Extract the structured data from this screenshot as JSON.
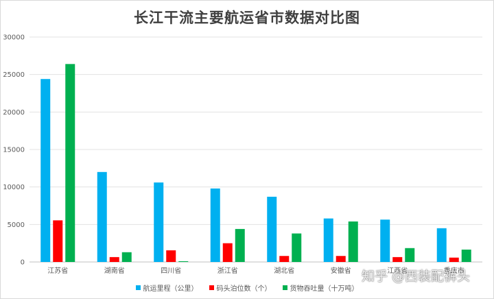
{
  "chart_data": {
    "type": "bar",
    "title": "长江干流主要航运省市数据对比图",
    "categories": [
      "江苏省",
      "湖南省",
      "四川省",
      "浙江省",
      "湖北省",
      "安徽省",
      "江西省",
      "重庆市"
    ],
    "series": [
      {
        "name": "航运里程（公里）",
        "color": "#00b0f0",
        "values": [
          24400,
          12000,
          10600,
          9800,
          8700,
          5800,
          5650,
          4500
        ]
      },
      {
        "name": "码头泊位数（个）",
        "color": "#ff0000",
        "values": [
          5550,
          650,
          1550,
          2500,
          800,
          800,
          650,
          580
        ]
      },
      {
        "name": "货物吞吐量（十万吨）",
        "color": "#00b050",
        "values": [
          26400,
          1300,
          100,
          4400,
          3800,
          5400,
          1850,
          1650
        ]
      }
    ],
    "yticks": [
      "0",
      "5000",
      "10000",
      "15000",
      "20000",
      "25000",
      "30000"
    ],
    "ylim": [
      0,
      30000
    ],
    "grid": true,
    "legend": "bottom"
  },
  "watermark": "知乎 @西装配裤头"
}
